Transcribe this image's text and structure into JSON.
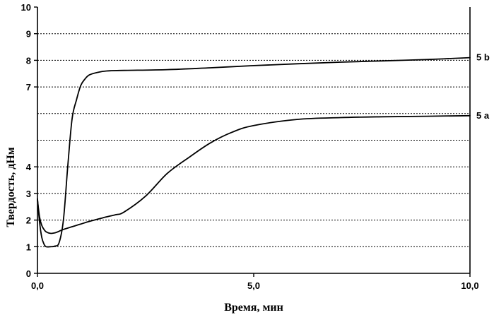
{
  "chart_data": {
    "type": "line",
    "xlabel": "Время, мин",
    "ylabel": "Твердость, дНм",
    "xlim": [
      0,
      10
    ],
    "ylim": [
      0,
      10
    ],
    "x_tick_labels": [
      "0,0",
      "5,0",
      "10,0"
    ],
    "x_tick_values": [
      0,
      5,
      10
    ],
    "y_tick_labels": [
      "0",
      "1",
      "2",
      "3",
      "4",
      "7",
      "8",
      "9",
      "10"
    ],
    "y_tick_values": [
      0,
      1,
      2,
      3,
      4,
      7,
      8,
      9,
      10
    ],
    "gridlines_y": [
      1,
      2,
      3,
      4,
      5,
      6,
      7,
      8,
      9
    ],
    "grid": true,
    "series": [
      {
        "name": "5b",
        "x": [
          0,
          0.05,
          0.1,
          0.15,
          0.2,
          0.3,
          0.4,
          0.5,
          0.6,
          0.7,
          0.8,
          0.9,
          1.0,
          1.1,
          1.2,
          1.4,
          1.6,
          2.0,
          3.0,
          4.0,
          5.0,
          6.0,
          7.0,
          8.0,
          9.0,
          10.0
        ],
        "values": [
          2.8,
          1.9,
          1.35,
          1.1,
          1.0,
          1.0,
          1.02,
          1.15,
          2.0,
          4.0,
          5.8,
          6.5,
          7.05,
          7.3,
          7.45,
          7.55,
          7.6,
          7.62,
          7.65,
          7.72,
          7.8,
          7.87,
          7.93,
          7.98,
          8.03,
          8.1
        ]
      },
      {
        "name": "5a",
        "x": [
          0,
          0.05,
          0.1,
          0.15,
          0.2,
          0.3,
          0.4,
          0.5,
          0.6,
          0.8,
          1.0,
          1.2,
          1.5,
          1.8,
          2.0,
          2.5,
          3.0,
          3.5,
          4.0,
          4.5,
          5.0,
          6.0,
          7.0,
          8.0,
          9.0,
          10.0
        ],
        "values": [
          2.75,
          2.1,
          1.8,
          1.65,
          1.56,
          1.5,
          1.52,
          1.58,
          1.65,
          1.75,
          1.85,
          1.95,
          2.08,
          2.2,
          2.3,
          2.9,
          3.75,
          4.35,
          4.9,
          5.3,
          5.55,
          5.78,
          5.85,
          5.88,
          5.9,
          5.92
        ]
      }
    ]
  }
}
